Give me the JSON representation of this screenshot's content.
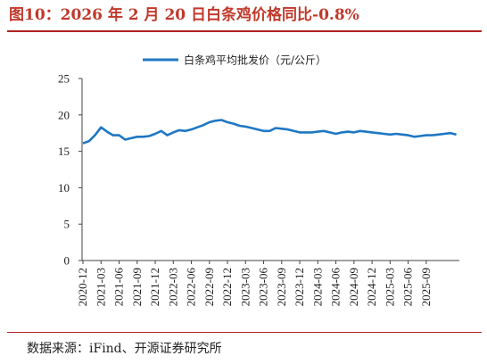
{
  "header": {
    "title": "图10：2026 年 2 月 20 日白条鸡价格同比-0.8%"
  },
  "footer": {
    "source": "数据来源：iFind、开源证券研究所"
  },
  "colors": {
    "series": "#1f77c4",
    "rule": "#b22222",
    "title": "#c0392b"
  },
  "chart_data": {
    "type": "line",
    "title": "",
    "xlabel": "",
    "ylabel": "",
    "ylim": [
      0,
      25
    ],
    "yticks": [
      0,
      5,
      10,
      15,
      20,
      25
    ],
    "grid": false,
    "legend_position": "top-center",
    "xticks": [
      "2020-12",
      "2021-03",
      "2021-06",
      "2021-09",
      "2021-12",
      "2022-03",
      "2022-06",
      "2022-09",
      "2022-12",
      "2023-03",
      "2023-06",
      "2023-09",
      "2023-12",
      "2024-03",
      "2024-06",
      "2024-09",
      "2024-12",
      "2025-03",
      "2025-06",
      "2025-09"
    ],
    "series": [
      {
        "name": "白条鸡平均批发价（元/公斤）",
        "x": [
          "2020-12",
          "2021-01",
          "2021-02",
          "2021-03",
          "2021-04",
          "2021-05",
          "2021-06",
          "2021-07",
          "2021-08",
          "2021-09",
          "2021-10",
          "2021-11",
          "2021-12",
          "2022-01",
          "2022-02",
          "2022-03",
          "2022-04",
          "2022-05",
          "2022-06",
          "2022-07",
          "2022-08",
          "2022-09",
          "2022-10",
          "2022-11",
          "2022-12",
          "2023-01",
          "2023-02",
          "2023-03",
          "2023-04",
          "2023-05",
          "2023-06",
          "2023-07",
          "2023-08",
          "2023-09",
          "2023-10",
          "2023-11",
          "2023-12",
          "2024-01",
          "2024-02",
          "2024-03",
          "2024-04",
          "2024-05",
          "2024-06",
          "2024-07",
          "2024-08",
          "2024-09",
          "2024-10",
          "2024-11",
          "2024-12",
          "2025-01",
          "2025-02",
          "2025-03",
          "2025-04",
          "2025-05",
          "2025-06",
          "2025-07",
          "2025-08",
          "2025-09",
          "2025-10",
          "2025-11",
          "2025-12",
          "2026-01",
          "2026-02"
        ],
        "values": [
          16.1,
          16.4,
          17.2,
          18.3,
          17.7,
          17.2,
          17.2,
          16.6,
          16.8,
          17.0,
          17.0,
          17.1,
          17.4,
          17.8,
          17.2,
          17.6,
          17.9,
          17.8,
          18.0,
          18.3,
          18.6,
          19.0,
          19.2,
          19.3,
          19.0,
          18.8,
          18.5,
          18.4,
          18.2,
          18.0,
          17.8,
          17.8,
          18.2,
          18.1,
          18.0,
          17.8,
          17.6,
          17.6,
          17.6,
          17.7,
          17.8,
          17.6,
          17.4,
          17.6,
          17.7,
          17.6,
          17.8,
          17.7,
          17.6,
          17.5,
          17.4,
          17.3,
          17.4,
          17.3,
          17.2,
          17.0,
          17.1,
          17.2,
          17.2,
          17.3,
          17.4,
          17.5,
          17.3
        ]
      }
    ]
  }
}
